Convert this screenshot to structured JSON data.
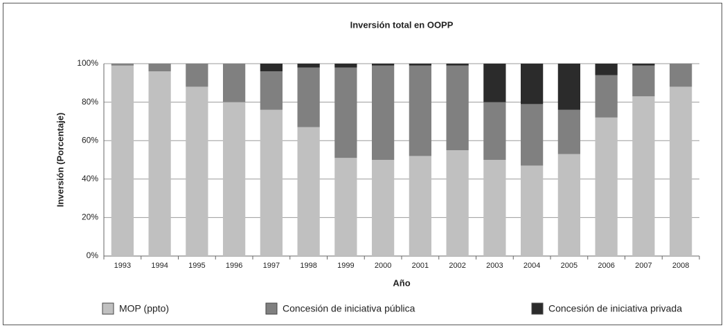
{
  "chart_data": {
    "type": "stacked_bar",
    "title": "Inversión total en OOPP",
    "x_label": "Año",
    "y_label": "Inversión (Porcentaje)",
    "categories": [
      "1993",
      "1994",
      "1995",
      "1996",
      "1997",
      "1998",
      "1999",
      "2000",
      "2001",
      "2002",
      "2003",
      "2004",
      "2005",
      "2006",
      "2007",
      "2008"
    ],
    "series": [
      {
        "name": "MOP (ppto)",
        "color": "#c0c0c0",
        "values": [
          99,
          96,
          88,
          80,
          76,
          67,
          51,
          50,
          52,
          55,
          50,
          47,
          53,
          72,
          83,
          88
        ]
      },
      {
        "name": "Concesión de iniciativa pública",
        "color": "#808080",
        "values": [
          1,
          4,
          12,
          20,
          20,
          31,
          47,
          49,
          47,
          44,
          30,
          32,
          23,
          22,
          16,
          12
        ]
      },
      {
        "name": "Concesión de iniciativa privada",
        "color": "#2b2b2b",
        "values": [
          0,
          0,
          0,
          0,
          4,
          2,
          2,
          1,
          1,
          1,
          20,
          21,
          24,
          6,
          1,
          0
        ]
      }
    ],
    "ylim": [
      0,
      100
    ],
    "yticks": [
      {
        "value": 0,
        "label": "0%"
      },
      {
        "value": 20,
        "label": "20%"
      },
      {
        "value": 40,
        "label": "40%"
      },
      {
        "value": 60,
        "label": "60%"
      },
      {
        "value": 80,
        "label": "80%"
      },
      {
        "value": 100,
        "label": "100%"
      }
    ],
    "grid": true,
    "legend": "bottom"
  }
}
